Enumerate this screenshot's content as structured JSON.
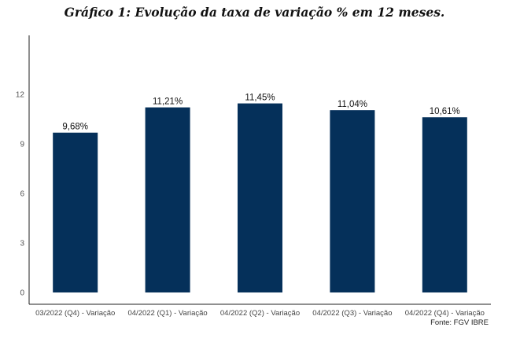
{
  "chart_data": {
    "type": "bar",
    "title": "Gráfico 1: Evolução da taxa de variação % em 12 meses.",
    "xlabel": "",
    "ylabel": "",
    "categories": [
      "03/2022 (Q4) - Variação",
      "04/2022 (Q1) - Variação",
      "04/2022 (Q2) - Variação",
      "04/2022 (Q3) - Variação",
      "04/2022 (Q4) - Variação"
    ],
    "values": [
      9.68,
      11.21,
      11.45,
      11.04,
      10.61
    ],
    "data_labels": [
      "9,68%",
      "11,21%",
      "11,45%",
      "11,04%",
      "10,61%"
    ],
    "yticks": [
      0,
      3,
      6,
      9,
      12
    ],
    "ylim": [
      0,
      15.5
    ],
    "grid": false,
    "bar_color": "#05305a",
    "source": "Fonte: FGV IBRE"
  }
}
